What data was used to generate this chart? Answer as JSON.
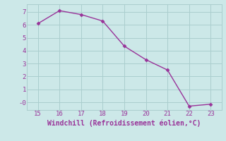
{
  "x": [
    15,
    16,
    17,
    18,
    19,
    20,
    21,
    22,
    23
  ],
  "y": [
    6.1,
    7.1,
    6.8,
    6.3,
    4.35,
    3.3,
    2.5,
    -0.3,
    -0.15
  ],
  "line_color": "#993399",
  "marker_color": "#993399",
  "bg_color": "#cce8e8",
  "grid_color": "#aacece",
  "xlabel": "Windchill (Refroidissement éolien,°C)",
  "xlabel_color": "#993399",
  "tick_color": "#993399",
  "xlim": [
    14.5,
    23.5
  ],
  "ylim": [
    -0.6,
    7.6
  ],
  "yticks": [
    0,
    1,
    2,
    3,
    4,
    5,
    6,
    7
  ],
  "ytick_labels": [
    "-0",
    "1",
    "2",
    "3",
    "4",
    "5",
    "6",
    "7"
  ],
  "xticks": [
    15,
    16,
    17,
    18,
    19,
    20,
    21,
    22,
    23
  ],
  "tick_fontsize": 6.5,
  "xlabel_fontsize": 7.0,
  "marker_size": 2.5,
  "line_width": 1.0
}
